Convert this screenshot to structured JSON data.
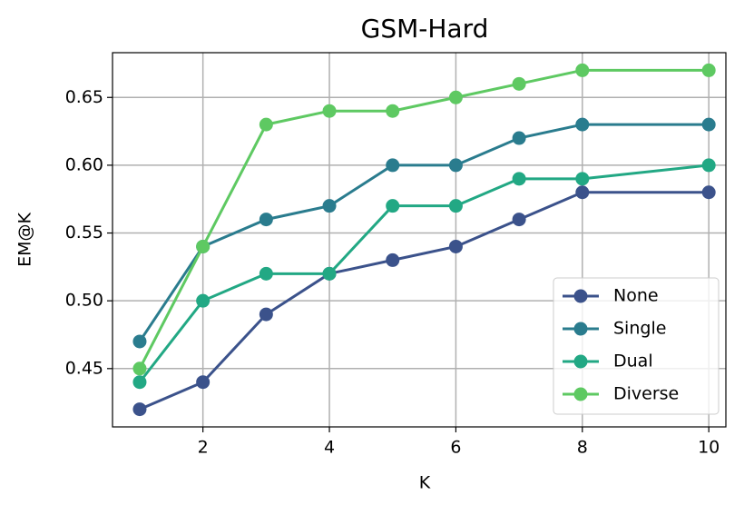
{
  "chart_data": {
    "type": "line",
    "title": "GSM-Hard",
    "x_label": "K",
    "y_label": "EM@K",
    "x": [
      1,
      2,
      3,
      4,
      5,
      6,
      7,
      8,
      10
    ],
    "series": [
      {
        "name": "None",
        "color": "#3b528b",
        "values": [
          0.42,
          0.44,
          0.49,
          0.52,
          0.53,
          0.54,
          0.56,
          0.58,
          0.58
        ]
      },
      {
        "name": "Single",
        "color": "#2a7c8e",
        "values": [
          0.47,
          0.54,
          0.56,
          0.57,
          0.6,
          0.6,
          0.62,
          0.63,
          0.63
        ]
      },
      {
        "name": "Dual",
        "color": "#22a884",
        "values": [
          0.44,
          0.5,
          0.52,
          0.52,
          0.57,
          0.57,
          0.59,
          0.59,
          0.6
        ]
      },
      {
        "name": "Diverse",
        "color": "#5ec962",
        "values": [
          0.45,
          0.54,
          0.63,
          0.64,
          0.64,
          0.65,
          0.66,
          0.67,
          0.67
        ]
      }
    ],
    "xlim": [
      0.57,
      10.27
    ],
    "ylim": [
      0.407,
      0.683
    ],
    "xticks": [
      2,
      4,
      6,
      8,
      10
    ],
    "yticks": [
      0.45,
      {
        "value": 0.5,
        "label": "0.50"
      },
      0.55,
      {
        "value": 0.6,
        "label": "0.60"
      },
      0.65
    ],
    "grid": true,
    "legend": "lower right"
  }
}
